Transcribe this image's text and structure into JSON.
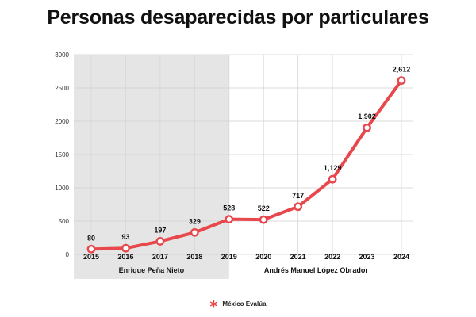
{
  "chart_data": {
    "type": "line",
    "title": "Personas desaparecidas por particulares",
    "x": [
      "2015",
      "2016",
      "2017",
      "2018",
      "2019",
      "2020",
      "2021",
      "2022",
      "2023",
      "2024"
    ],
    "series": [
      {
        "values": [
          80,
          93,
          197,
          329,
          528,
          522,
          717,
          1129,
          1902,
          2612
        ],
        "labels": [
          "80",
          "93",
          "197",
          "329",
          "528",
          "522",
          "717",
          "1,129",
          "1,902",
          "2,612"
        ],
        "color": "#e8474c"
      }
    ],
    "yticks": [
      "0",
      "500",
      "1000",
      "1500",
      "2000",
      "2500",
      "3000"
    ],
    "ylim": [
      0,
      3000
    ],
    "grid": true,
    "periods": [
      {
        "label": "Enrique Peña Nieto",
        "from": "2015",
        "to": "2019",
        "shaded": true,
        "color": "#e5e5e5"
      },
      {
        "label": "Andrés Manuel López Obrador",
        "from": "2019",
        "to": "2024",
        "shaded": false
      }
    ]
  },
  "footer": {
    "brand": "México Evalúa",
    "icon": "asterisk-logo-icon",
    "icon_color": "#e8474c"
  }
}
